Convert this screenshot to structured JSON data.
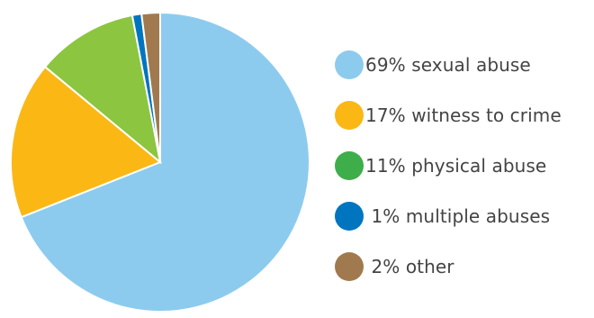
{
  "chart_data": {
    "type": "pie",
    "title": "",
    "slices": [
      {
        "label": "69% sexual abuse",
        "value": 69,
        "color": "#8DCBEE"
      },
      {
        "label": "17% witness to crime",
        "value": 17,
        "color": "#FBB714"
      },
      {
        "label": "11% physical abuse",
        "value": 11,
        "color": "#8CC53F"
      },
      {
        "label": " 1% multiple abuses",
        "value": 1,
        "color": "#0075BF"
      },
      {
        "label": " 2% other",
        "value": 2,
        "color": "#A07A4E"
      }
    ],
    "legend": {
      "position": "right",
      "items": [
        {
          "label": "69% sexual abuse",
          "color": "#8DCBEE"
        },
        {
          "label": "17% witness to crime",
          "color": "#FBB714"
        },
        {
          "label": "11% physical abuse",
          "color": "#3DAE49"
        },
        {
          "label": " 1% multiple abuses",
          "color": "#0075BF"
        },
        {
          "label": " 2% other",
          "color": "#A07A4E"
        }
      ]
    }
  }
}
